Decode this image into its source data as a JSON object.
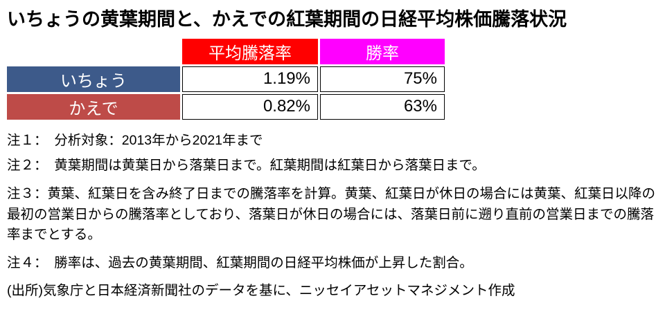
{
  "title": "いちょうの黄葉期間と、かえでの紅葉期間の日経平均株価騰落状況",
  "table": {
    "headers": [
      "平均騰落率",
      "勝率"
    ],
    "rows": [
      {
        "label": "いちょう",
        "avg": "1.19%",
        "win": "75%"
      },
      {
        "label": "かえで",
        "avg": "0.82%",
        "win": "63%"
      }
    ]
  },
  "notes": [
    "注１：　分析対象：2013年から2021年まで",
    "注２：　黄葉期間は黄葉日から落葉日まで。紅葉期間は紅葉日から落葉日まで。",
    "注３：黄葉、紅葉日を含み終了日までの騰落率を計算。黄葉、紅葉日が休日の場合には黄葉、紅葉日以降の最初の営業日からの騰落率としており、落葉日が休日の場合には、落葉日前に遡り直前の営業日までの騰落率までとする。",
    "注４：　勝率は、過去の黄葉期間、紅葉期間の日経平均株価が上昇した割合。"
  ],
  "source": "(出所)気象庁と日本経済新聞社のデータを基に、ニッセイアセットマネジメント作成",
  "colors": {
    "header_avg": "#FF0000",
    "header_win": "#FF00FF",
    "row_ichou": "#3D5A8A",
    "row_kaede": "#BE4B48",
    "text": "#000000",
    "background": "#FFFFFF"
  },
  "chart_data": {
    "type": "table",
    "title": "いちょうの黄葉期間と、かえでの紅葉期間の日経平均株価騰落状況",
    "columns": [
      "",
      "平均騰落率",
      "勝率"
    ],
    "rows": [
      [
        "いちょう",
        "1.19%",
        "75%"
      ],
      [
        "かえで",
        "0.82%",
        "63%"
      ]
    ],
    "values": {
      "ichou_avg_change_pct": 1.19,
      "ichou_win_rate_pct": 75,
      "kaede_avg_change_pct": 0.82,
      "kaede_win_rate_pct": 63
    },
    "period": "2013-2021"
  }
}
